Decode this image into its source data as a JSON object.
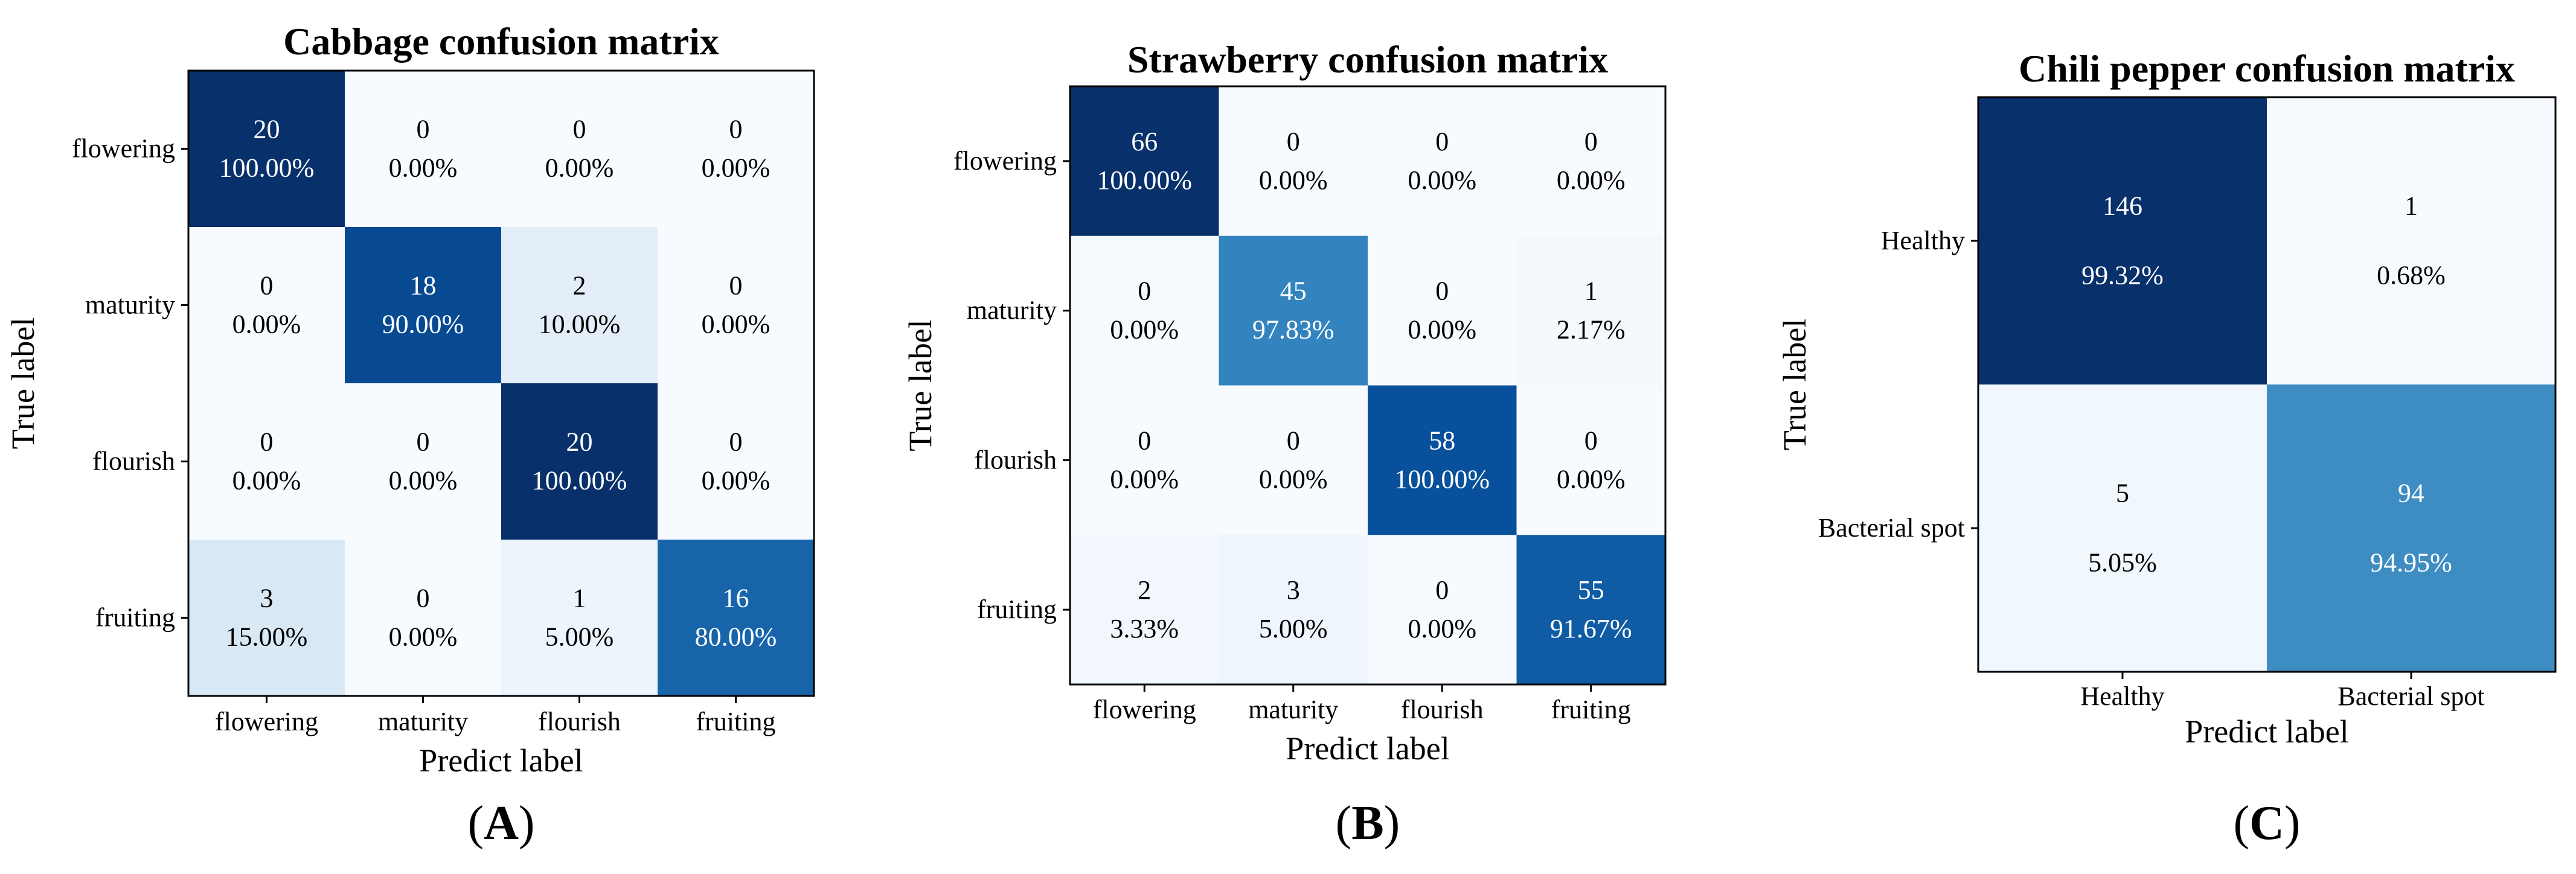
{
  "chart_data": [
    {
      "type": "heatmap",
      "title": "Cabbage confusion matrix",
      "xlabel": "Predict label",
      "ylabel": "True label",
      "panel_label": "A",
      "categories": [
        "flowering",
        "maturity",
        "flourish",
        "fruiting"
      ],
      "counts": [
        [
          20,
          0,
          0,
          0
        ],
        [
          0,
          18,
          2,
          0
        ],
        [
          0,
          0,
          20,
          0
        ],
        [
          3,
          0,
          1,
          16
        ]
      ],
      "percents": [
        [
          "100.00%",
          "0.00%",
          "0.00%",
          "0.00%"
        ],
        [
          "0.00%",
          "90.00%",
          "10.00%",
          "0.00%"
        ],
        [
          "0.00%",
          "0.00%",
          "100.00%",
          "0.00%"
        ],
        [
          "15.00%",
          "0.00%",
          "5.00%",
          "80.00%"
        ]
      ],
      "max": 20,
      "colormap": "Blues"
    },
    {
      "type": "heatmap",
      "title": "Strawberry  confusion matrix",
      "xlabel": "Predict label",
      "ylabel": "True label",
      "panel_label": "B",
      "categories": [
        "flowering",
        "maturity",
        "flourish",
        "fruiting"
      ],
      "counts": [
        [
          66,
          0,
          0,
          0
        ],
        [
          0,
          45,
          0,
          1
        ],
        [
          0,
          0,
          58,
          0
        ],
        [
          2,
          3,
          0,
          55
        ]
      ],
      "percents": [
        [
          "100.00%",
          "0.00%",
          "0.00%",
          "0.00%"
        ],
        [
          "0.00%",
          "97.83%",
          "0.00%",
          "2.17%"
        ],
        [
          "0.00%",
          "0.00%",
          "100.00%",
          "0.00%"
        ],
        [
          "3.33%",
          "5.00%",
          "0.00%",
          "91.67%"
        ]
      ],
      "max": 66,
      "colormap": "Blues"
    },
    {
      "type": "heatmap",
      "title": "Chili pepper confusion matrix",
      "xlabel": "Predict label",
      "ylabel": "True label",
      "panel_label": "C",
      "categories": [
        "Healthy",
        "Bacterial spot"
      ],
      "counts": [
        [
          146,
          1
        ],
        [
          5,
          94
        ]
      ],
      "percents": [
        [
          "99.32%",
          "0.68%"
        ],
        [
          "5.05%",
          "94.95%"
        ]
      ],
      "max": 146,
      "colormap": "Blues"
    }
  ]
}
